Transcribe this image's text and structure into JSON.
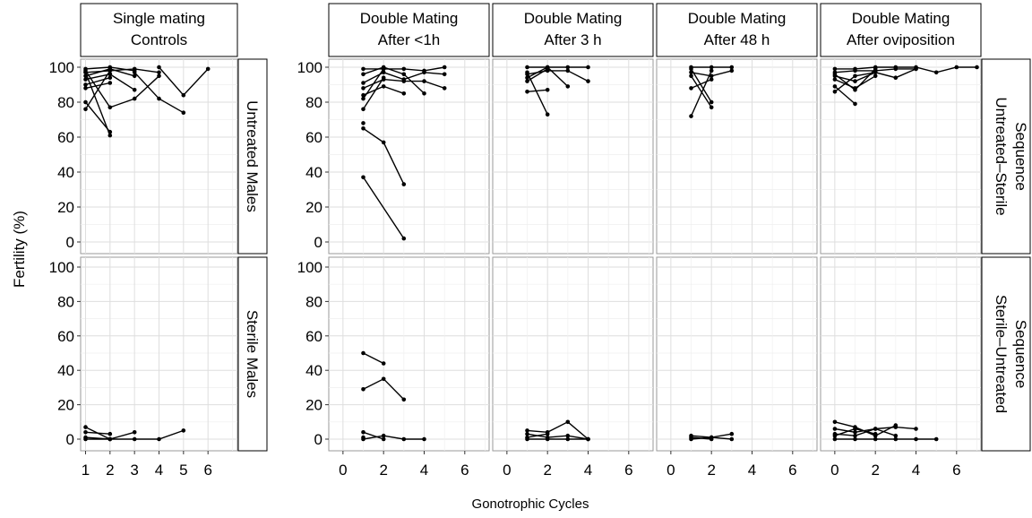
{
  "chart_data": {
    "type": "line",
    "xlabel": "Gonotrophic Cycles",
    "ylabel": "Fertility (%)",
    "ylim": [
      0,
      100
    ],
    "y_ticks": [
      "0",
      "20",
      "40",
      "60",
      "80",
      "100"
    ],
    "grid": true,
    "row_labels": [
      {
        "inner": "Untreated Males",
        "outer": "Untreated–Sterile Sequence"
      },
      {
        "inner": "Sterile Males",
        "outer": "Sterile–Untreated Sequence"
      }
    ],
    "columns": [
      {
        "title": [
          "Single mating",
          "Controls"
        ],
        "xlim": [
          0.8,
          7.2
        ],
        "x_ticks": [
          "1",
          "2",
          "3",
          "4",
          "5",
          "6"
        ]
      },
      {
        "title": [
          "Double Mating",
          "After <1h"
        ],
        "xlim": [
          -0.7,
          7.2
        ],
        "x_ticks": [
          "0",
          "2",
          "4",
          "6"
        ]
      },
      {
        "title": [
          "Double Mating",
          "After 3 h"
        ],
        "xlim": [
          -0.7,
          7.2
        ],
        "x_ticks": [
          "0",
          "2",
          "4",
          "6"
        ]
      },
      {
        "title": [
          "Double Mating",
          "After 48 h"
        ],
        "xlim": [
          -0.7,
          7.2
        ],
        "x_ticks": [
          "0",
          "2",
          "4",
          "6"
        ]
      },
      {
        "title": [
          "Double Mating",
          "After oviposition"
        ],
        "xlim": [
          -0.7,
          7.2
        ],
        "x_ticks": [
          "0",
          "2",
          "4",
          "6"
        ]
      }
    ],
    "panels": [
      {
        "row": 0,
        "col": 0,
        "series": [
          {
            "x": [
              1,
              2,
              3
            ],
            "y": [
              99,
              100,
              98
            ]
          },
          {
            "x": [
              1,
              2,
              3,
              4
            ],
            "y": [
              97,
              98,
              99,
              97
            ]
          },
          {
            "x": [
              1,
              2,
              3
            ],
            "y": [
              95,
              99,
              95
            ]
          },
          {
            "x": [
              1,
              2
            ],
            "y": [
              93,
              96
            ]
          },
          {
            "x": [
              1,
              2
            ],
            "y": [
              90,
              94
            ]
          },
          {
            "x": [
              1,
              2
            ],
            "y": [
              88,
              91
            ]
          },
          {
            "x": [
              1,
              2
            ],
            "y": [
              80,
              63
            ]
          },
          {
            "x": [
              1,
              2
            ],
            "y": [
              76,
              98
            ]
          },
          {
            "x": [
              1,
              2,
              3,
              4
            ],
            "y": [
              98,
              77,
              82,
              95
            ]
          },
          {
            "x": [
              1,
              2
            ],
            "y": [
              97,
              61
            ]
          },
          {
            "x": [
              2,
              3
            ],
            "y": [
              96,
              87
            ]
          },
          {
            "x": [
              3,
              4,
              5
            ],
            "y": [
              97,
              82,
              74
            ]
          },
          {
            "x": [
              4,
              5,
              6
            ],
            "y": [
              100,
              84,
              99
            ]
          }
        ]
      },
      {
        "row": 0,
        "col": 1,
        "series": [
          {
            "x": [
              1,
              2,
              3,
              4,
              5
            ],
            "y": [
              99,
              99,
              99,
              98,
              100
            ]
          },
          {
            "x": [
              1,
              2,
              3,
              4,
              5
            ],
            "y": [
              91,
              97,
              93,
              97,
              96
            ]
          },
          {
            "x": [
              1,
              2,
              3,
              4,
              5
            ],
            "y": [
              88,
              93,
              92,
              92,
              88
            ]
          },
          {
            "x": [
              1,
              2,
              3
            ],
            "y": [
              84,
              89,
              85
            ]
          },
          {
            "x": [
              1,
              2
            ],
            "y": [
              76,
              94
            ]
          },
          {
            "x": [
              1,
              2
            ],
            "y": [
              82,
              99
            ]
          },
          {
            "x": [
              1,
              2,
              3,
              4
            ],
            "y": [
              96,
              100,
              96,
              85
            ]
          },
          {
            "x": [
              1,
              2,
              3
            ],
            "y": [
              65,
              57,
              33
            ]
          },
          {
            "x": [
              1
            ],
            "y": [
              68
            ]
          },
          {
            "x": [
              1,
              3
            ],
            "y": [
              37,
              2
            ]
          }
        ]
      },
      {
        "row": 0,
        "col": 2,
        "series": [
          {
            "x": [
              1,
              2,
              3,
              4
            ],
            "y": [
              100,
              100,
              100,
              100
            ]
          },
          {
            "x": [
              1,
              2,
              3,
              4
            ],
            "y": [
              96,
              98,
              98,
              92
            ]
          },
          {
            "x": [
              1,
              2,
              3
            ],
            "y": [
              94,
              100,
              89
            ]
          },
          {
            "x": [
              1,
              2
            ],
            "y": [
              86,
              87
            ]
          },
          {
            "x": [
              1,
              2
            ],
            "y": [
              97,
              73
            ]
          },
          {
            "x": [
              1,
              2
            ],
            "y": [
              92,
              99
            ]
          }
        ]
      },
      {
        "row": 0,
        "col": 3,
        "series": [
          {
            "x": [
              1,
              2,
              3
            ],
            "y": [
              100,
              100,
              100
            ]
          },
          {
            "x": [
              1,
              2,
              3
            ],
            "y": [
              97,
              95,
              98
            ]
          },
          {
            "x": [
              1,
              2
            ],
            "y": [
              95,
              77
            ]
          },
          {
            "x": [
              1,
              2
            ],
            "y": [
              88,
              93
            ]
          },
          {
            "x": [
              1,
              2
            ],
            "y": [
              72,
              98
            ]
          },
          {
            "x": [
              1,
              2
            ],
            "y": [
              99,
              80
            ]
          }
        ]
      },
      {
        "row": 0,
        "col": 4,
        "series": [
          {
            "x": [
              0,
              1,
              2,
              3,
              4,
              5,
              6,
              7
            ],
            "y": [
              99,
              99,
              100,
              100,
              100,
              97,
              100,
              100
            ]
          },
          {
            "x": [
              0,
              1,
              2,
              3,
              4
            ],
            "y": [
              97,
              98,
              98,
              99,
              99
            ]
          },
          {
            "x": [
              0,
              1,
              2,
              3,
              4
            ],
            "y": [
              95,
              92,
              97,
              94,
              99
            ]
          },
          {
            "x": [
              0,
              1,
              2
            ],
            "y": [
              93,
              88,
              95
            ]
          },
          {
            "x": [
              0,
              1
            ],
            "y": [
              89,
              79
            ]
          },
          {
            "x": [
              0,
              1,
              2
            ],
            "y": [
              86,
              95,
              97
            ]
          },
          {
            "x": [
              0,
              1,
              2
            ],
            "y": [
              96,
              87,
              99
            ]
          }
        ]
      },
      {
        "row": 1,
        "col": 0,
        "series": [
          {
            "x": [
              1,
              2,
              3
            ],
            "y": [
              7,
              0,
              4
            ]
          },
          {
            "x": [
              1,
              2
            ],
            "y": [
              4,
              3
            ]
          },
          {
            "x": [
              1,
              2
            ],
            "y": [
              1,
              0
            ]
          },
          {
            "x": [
              1,
              2,
              3,
              4,
              5
            ],
            "y": [
              0,
              0,
              0,
              0,
              5
            ]
          }
        ]
      },
      {
        "row": 1,
        "col": 1,
        "series": [
          {
            "x": [
              1,
              2
            ],
            "y": [
              50,
              44
            ]
          },
          {
            "x": [
              1,
              2,
              3
            ],
            "y": [
              29,
              35,
              23
            ]
          },
          {
            "x": [
              1,
              2,
              3,
              4
            ],
            "y": [
              0,
              2,
              0,
              0
            ]
          },
          {
            "x": [
              1,
              2
            ],
            "y": [
              4,
              0
            ]
          },
          {
            "x": [
              1
            ],
            "y": [
              1
            ]
          }
        ]
      },
      {
        "row": 1,
        "col": 2,
        "series": [
          {
            "x": [
              1,
              2,
              3,
              4
            ],
            "y": [
              5,
              4,
              10,
              0
            ]
          },
          {
            "x": [
              1,
              2,
              3,
              4
            ],
            "y": [
              3,
              1,
              2,
              0
            ]
          },
          {
            "x": [
              1,
              2,
              3,
              4
            ],
            "y": [
              0,
              0,
              0,
              0
            ]
          },
          {
            "x": [
              1,
              2
            ],
            "y": [
              1,
              3
            ]
          }
        ]
      },
      {
        "row": 1,
        "col": 3,
        "series": [
          {
            "x": [
              1,
              2,
              3
            ],
            "y": [
              2,
              1,
              3
            ]
          },
          {
            "x": [
              1,
              2
            ],
            "y": [
              1,
              0
            ]
          },
          {
            "x": [
              1,
              2,
              3
            ],
            "y": [
              0,
              1,
              0
            ]
          }
        ]
      },
      {
        "row": 1,
        "col": 4,
        "series": [
          {
            "x": [
              0,
              1,
              2,
              3
            ],
            "y": [
              10,
              7,
              2,
              8
            ]
          },
          {
            "x": [
              0,
              1,
              2,
              3,
              4
            ],
            "y": [
              6,
              4,
              6,
              7,
              6
            ]
          },
          {
            "x": [
              0,
              1,
              2,
              3
            ],
            "y": [
              3,
              2,
              6,
              2
            ]
          },
          {
            "x": [
              0,
              1,
              2,
              3,
              4,
              5
            ],
            "y": [
              0,
              0,
              0,
              0,
              0,
              0
            ]
          },
          {
            "x": [
              0,
              1,
              2
            ],
            "y": [
              2,
              6,
              3
            ]
          }
        ]
      }
    ]
  }
}
